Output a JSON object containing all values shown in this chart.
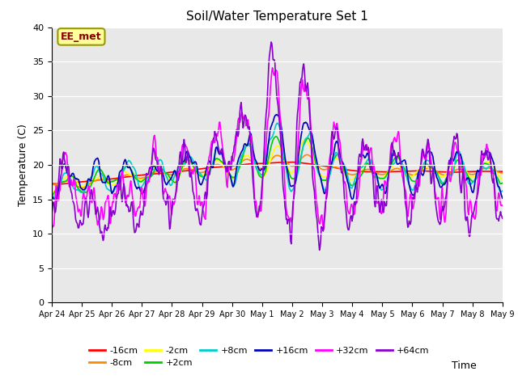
{
  "title": "Soil/Water Temperature Set 1",
  "xlabel": "Time",
  "ylabel": "Temperature (C)",
  "ylim": [
    0,
    40
  ],
  "yticks": [
    0,
    5,
    10,
    15,
    20,
    25,
    30,
    35,
    40
  ],
  "annotation": "EE_met",
  "bg_color": "#e8e8e8",
  "fig_bg_color": "#ffffff",
  "series": {
    "-16cm": {
      "color": "#ff0000",
      "lw": 1.2
    },
    "-8cm": {
      "color": "#ff8800",
      "lw": 1.2
    },
    "-2cm": {
      "color": "#ffff00",
      "lw": 1.2
    },
    "+2cm": {
      "color": "#00cc00",
      "lw": 1.2
    },
    "+8cm": {
      "color": "#00cccc",
      "lw": 1.2
    },
    "+16cm": {
      "color": "#0000bb",
      "lw": 1.2
    },
    "+32cm": {
      "color": "#ff00ff",
      "lw": 1.2
    },
    "+64cm": {
      "color": "#8800cc",
      "lw": 1.2
    }
  },
  "n_days": 15,
  "samples_per_day": 48,
  "xtick_labels": [
    "Apr 24",
    "Apr 25",
    "Apr 26",
    "Apr 27",
    "Apr 28",
    "Apr 29",
    "Apr 30",
    "May 1",
    "May 2",
    "May 3",
    "May 4",
    "May 5",
    "May 6",
    "May 7",
    "May 8",
    "May 9"
  ],
  "legend_ncol_row1": 6,
  "legend_ncol_row2": 2
}
